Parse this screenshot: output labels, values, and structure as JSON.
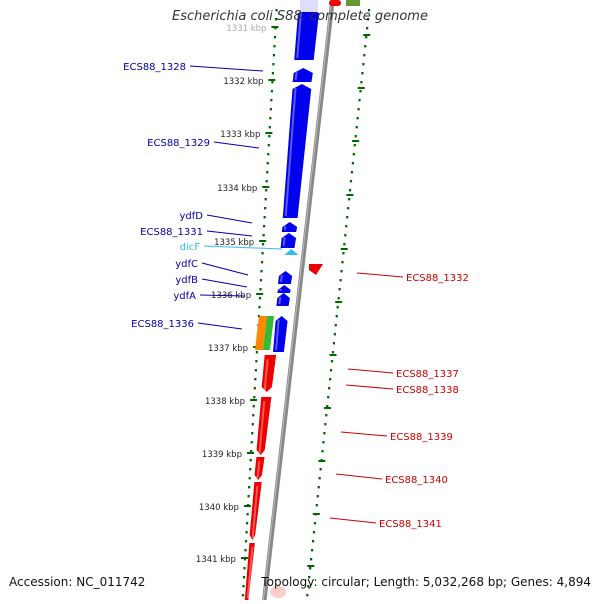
{
  "title": "Escherichia coli S88, complete genome",
  "footer": {
    "accession": "Accession: NC_011742",
    "summary": "Topology: circular; Length: 5,032,268 bp; Genes: 4,894"
  },
  "colors": {
    "forward_gene": "#0000ee",
    "reverse_gene": "#ee0000",
    "rna_gene": "#33bbee",
    "ticks": "#006600",
    "backbone": "#888888",
    "orange_feature": "#ff8800",
    "green_feature": "#33bb33"
  },
  "ruler": [
    {
      "label": "1331 kbp"
    },
    {
      "label": "1332 kbp"
    },
    {
      "label": "1333 kbp"
    },
    {
      "label": "1334 kbp"
    },
    {
      "label": "1335 kbp"
    },
    {
      "label": "1336 kbp"
    },
    {
      "label": "1337 kbp"
    },
    {
      "label": "1338 kbp"
    },
    {
      "label": "1339 kbp"
    },
    {
      "label": "1340 kbp"
    },
    {
      "label": "1341 kbp"
    }
  ],
  "forward_labels": [
    {
      "name": "ECS88_1328"
    },
    {
      "name": "ECS88_1329"
    },
    {
      "name": "ydfD"
    },
    {
      "name": "ECS88_1331"
    },
    {
      "name": "dicF"
    },
    {
      "name": "ydfC"
    },
    {
      "name": "ydfB"
    },
    {
      "name": "ydfA"
    },
    {
      "name": "ECS88_1336"
    }
  ],
  "reverse_labels": [
    {
      "name": "ECS88_1332"
    },
    {
      "name": "ECS88_1337"
    },
    {
      "name": "ECS88_1338"
    },
    {
      "name": "ECS88_1339"
    },
    {
      "name": "ECS88_1340"
    },
    {
      "name": "ECS88_1341"
    }
  ]
}
